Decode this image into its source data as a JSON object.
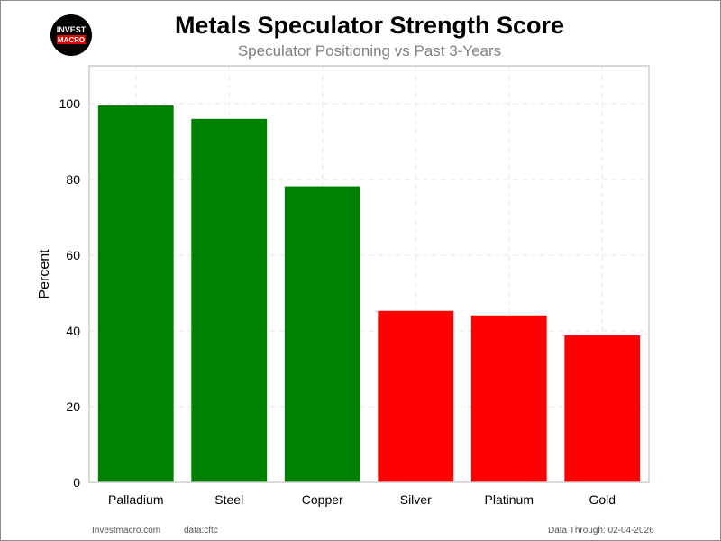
{
  "logo": {
    "line1": "INVEST",
    "line2": "MACRO"
  },
  "chart_data": {
    "type": "bar",
    "title": "Metals Speculator Strength Score",
    "subtitle": "Speculator Positioning vs Past 3-Years",
    "xlabel": "",
    "ylabel": "Percent",
    "categories": [
      "Palladium",
      "Steel",
      "Copper",
      "Silver",
      "Platinum",
      "Gold"
    ],
    "values": [
      99.5,
      96.0,
      78.2,
      45.3,
      44.1,
      38.8
    ],
    "bar_colors": [
      "#008000",
      "#008000",
      "#008000",
      "#ff0000",
      "#ff0000",
      "#ff0000"
    ],
    "yticks": [
      "0",
      "20",
      "40",
      "60",
      "80",
      "100"
    ],
    "ylim": [
      0,
      110
    ],
    "grid": true,
    "legend": "none"
  },
  "footer": {
    "site": "Investmacro.com",
    "source": "data:cftc",
    "date": "Data Through: 02-04-2026"
  }
}
